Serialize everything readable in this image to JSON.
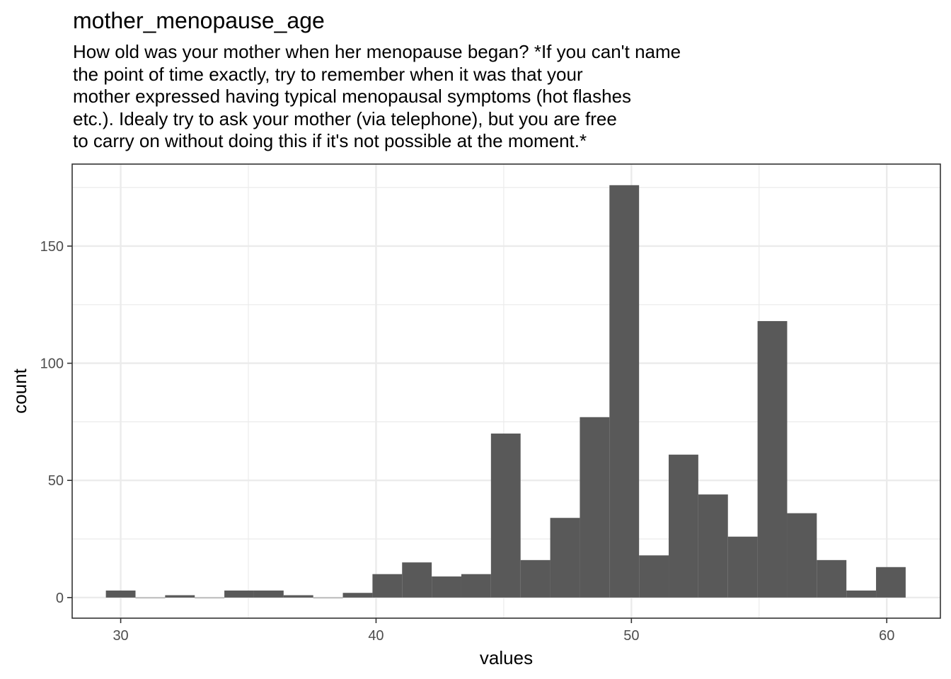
{
  "chart_data": {
    "type": "bar",
    "title": "mother_menopause_age",
    "subtitle_lines": [
      "How old was your mother when her menopause began? *If you can't name",
      "the point of time exactly, try to remember when it was that your",
      "mother expressed having typical menopausal symptoms (hot flashes",
      "etc.). Idealy try to ask your mother (via telephone), but you are free",
      "to carry on without doing this if it's not possible at the moment.*"
    ],
    "xlabel": "values",
    "ylabel": "count",
    "xlim": [
      28.1,
      62.1
    ],
    "ylim": [
      -8.8,
      185
    ],
    "x_ticks": [
      30,
      40,
      50,
      60
    ],
    "y_ticks": [
      0,
      50,
      100,
      150
    ],
    "bin_width": 1.16,
    "bins": [
      {
        "x": 30.0,
        "count": 3
      },
      {
        "x": 31.16,
        "count": 0
      },
      {
        "x": 32.32,
        "count": 1
      },
      {
        "x": 33.48,
        "count": 0
      },
      {
        "x": 34.64,
        "count": 3
      },
      {
        "x": 35.8,
        "count": 3
      },
      {
        "x": 36.96,
        "count": 1
      },
      {
        "x": 38.12,
        "count": 0
      },
      {
        "x": 39.28,
        "count": 2
      },
      {
        "x": 40.44,
        "count": 10
      },
      {
        "x": 41.6,
        "count": 15
      },
      {
        "x": 42.76,
        "count": 9
      },
      {
        "x": 43.92,
        "count": 10
      },
      {
        "x": 45.08,
        "count": 70
      },
      {
        "x": 46.24,
        "count": 16
      },
      {
        "x": 47.4,
        "count": 34
      },
      {
        "x": 48.56,
        "count": 77
      },
      {
        "x": 49.72,
        "count": 176
      },
      {
        "x": 50.88,
        "count": 18
      },
      {
        "x": 52.04,
        "count": 61
      },
      {
        "x": 53.2,
        "count": 44
      },
      {
        "x": 54.36,
        "count": 26
      },
      {
        "x": 55.52,
        "count": 118
      },
      {
        "x": 56.68,
        "count": 36
      },
      {
        "x": 57.84,
        "count": 16
      },
      {
        "x": 59.0,
        "count": 3
      },
      {
        "x": 60.16,
        "count": 13
      }
    ],
    "bar_color": "#595959",
    "panel_background": "#ffffff",
    "grid": true,
    "grid_color": "#ebebeb",
    "legend": "none"
  }
}
